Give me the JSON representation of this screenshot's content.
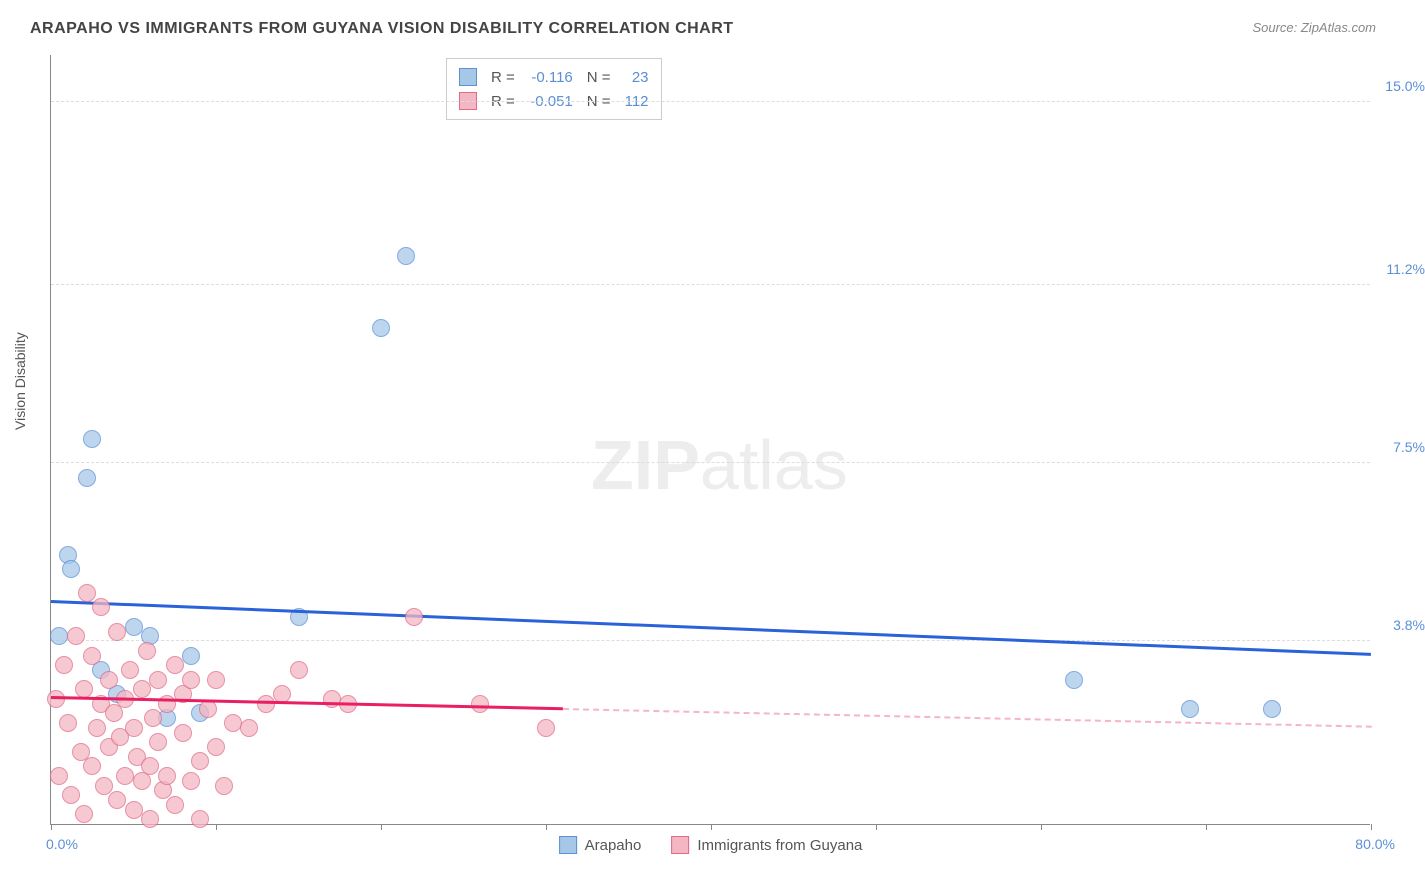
{
  "header": {
    "title": "ARAPAHO VS IMMIGRANTS FROM GUYANA VISION DISABILITY CORRELATION CHART",
    "source": "Source: ZipAtlas.com"
  },
  "chart": {
    "type": "scatter",
    "ylabel": "Vision Disability",
    "xlim": [
      0,
      80
    ],
    "ylim": [
      0,
      16
    ],
    "x_min_label": "0.0%",
    "x_max_label": "80.0%",
    "yticks": [
      {
        "value": 3.8,
        "label": "3.8%"
      },
      {
        "value": 7.5,
        "label": "7.5%"
      },
      {
        "value": 11.2,
        "label": "11.2%"
      },
      {
        "value": 15.0,
        "label": "15.0%"
      }
    ],
    "xticks": [
      0,
      10,
      20,
      30,
      40,
      50,
      60,
      70,
      80
    ],
    "background_color": "#ffffff",
    "grid_color": "#dddddd",
    "axis_color": "#888888",
    "label_color": "#5b8fd6",
    "point_radius": 9,
    "series": [
      {
        "name": "Arapaho",
        "fill_color": "#a7c7e7",
        "stroke_color": "#5b8fd6",
        "trend_color": "#2962d9",
        "R": "-0.116",
        "N": "23",
        "trend": {
          "x1": 0,
          "y1": 4.6,
          "x2": 80,
          "y2": 3.5,
          "solid_to_x": 80
        },
        "points": [
          {
            "x": 0.5,
            "y": 3.9
          },
          {
            "x": 1.0,
            "y": 5.6
          },
          {
            "x": 1.2,
            "y": 5.3
          },
          {
            "x": 2.2,
            "y": 7.2
          },
          {
            "x": 2.5,
            "y": 8.0
          },
          {
            "x": 3.0,
            "y": 3.2
          },
          {
            "x": 4.0,
            "y": 2.7
          },
          {
            "x": 5.0,
            "y": 4.1
          },
          {
            "x": 6.0,
            "y": 3.9
          },
          {
            "x": 7.0,
            "y": 2.2
          },
          {
            "x": 8.5,
            "y": 3.5
          },
          {
            "x": 9.0,
            "y": 2.3
          },
          {
            "x": 15.0,
            "y": 4.3
          },
          {
            "x": 20.0,
            "y": 10.3
          },
          {
            "x": 21.5,
            "y": 11.8
          },
          {
            "x": 62.0,
            "y": 3.0
          },
          {
            "x": 69.0,
            "y": 2.4
          },
          {
            "x": 74.0,
            "y": 2.4
          }
        ]
      },
      {
        "name": "Immigrants from Guyana",
        "fill_color": "#f4b6c2",
        "stroke_color": "#e06b87",
        "trend_color": "#e91e63",
        "R": "-0.051",
        "N": "112",
        "trend": {
          "x1": 0,
          "y1": 2.6,
          "x2": 80,
          "y2": 2.0,
          "solid_to_x": 31
        },
        "points": [
          {
            "x": 0.3,
            "y": 2.6
          },
          {
            "x": 0.5,
            "y": 1.0
          },
          {
            "x": 0.8,
            "y": 3.3
          },
          {
            "x": 1.0,
            "y": 2.1
          },
          {
            "x": 1.2,
            "y": 0.6
          },
          {
            "x": 1.5,
            "y": 3.9
          },
          {
            "x": 1.8,
            "y": 1.5
          },
          {
            "x": 2.0,
            "y": 2.8
          },
          {
            "x": 2.0,
            "y": 0.2
          },
          {
            "x": 2.2,
            "y": 4.8
          },
          {
            "x": 2.5,
            "y": 1.2
          },
          {
            "x": 2.5,
            "y": 3.5
          },
          {
            "x": 2.8,
            "y": 2.0
          },
          {
            "x": 3.0,
            "y": 2.5
          },
          {
            "x": 3.0,
            "y": 4.5
          },
          {
            "x": 3.2,
            "y": 0.8
          },
          {
            "x": 3.5,
            "y": 1.6
          },
          {
            "x": 3.5,
            "y": 3.0
          },
          {
            "x": 3.8,
            "y": 2.3
          },
          {
            "x": 4.0,
            "y": 0.5
          },
          {
            "x": 4.0,
            "y": 4.0
          },
          {
            "x": 4.2,
            "y": 1.8
          },
          {
            "x": 4.5,
            "y": 2.6
          },
          {
            "x": 4.5,
            "y": 1.0
          },
          {
            "x": 4.8,
            "y": 3.2
          },
          {
            "x": 5.0,
            "y": 0.3
          },
          {
            "x": 5.0,
            "y": 2.0
          },
          {
            "x": 5.2,
            "y": 1.4
          },
          {
            "x": 5.5,
            "y": 2.8
          },
          {
            "x": 5.5,
            "y": 0.9
          },
          {
            "x": 5.8,
            "y": 3.6
          },
          {
            "x": 6.0,
            "y": 1.2
          },
          {
            "x": 6.0,
            "y": 0.1
          },
          {
            "x": 6.2,
            "y": 2.2
          },
          {
            "x": 6.5,
            "y": 1.7
          },
          {
            "x": 6.5,
            "y": 3.0
          },
          {
            "x": 6.8,
            "y": 0.7
          },
          {
            "x": 7.0,
            "y": 2.5
          },
          {
            "x": 7.0,
            "y": 1.0
          },
          {
            "x": 7.5,
            "y": 3.3
          },
          {
            "x": 7.5,
            "y": 0.4
          },
          {
            "x": 8.0,
            "y": 1.9
          },
          {
            "x": 8.0,
            "y": 2.7
          },
          {
            "x": 8.5,
            "y": 0.9
          },
          {
            "x": 8.5,
            "y": 3.0
          },
          {
            "x": 9.0,
            "y": 1.3
          },
          {
            "x": 9.0,
            "y": 0.1
          },
          {
            "x": 9.5,
            "y": 2.4
          },
          {
            "x": 10.0,
            "y": 1.6
          },
          {
            "x": 10.0,
            "y": 3.0
          },
          {
            "x": 10.5,
            "y": 0.8
          },
          {
            "x": 11.0,
            "y": 2.1
          },
          {
            "x": 12.0,
            "y": 2.0
          },
          {
            "x": 13.0,
            "y": 2.5
          },
          {
            "x": 14.0,
            "y": 2.7
          },
          {
            "x": 15.0,
            "y": 3.2
          },
          {
            "x": 17.0,
            "y": 2.6
          },
          {
            "x": 18.0,
            "y": 2.5
          },
          {
            "x": 22.0,
            "y": 4.3
          },
          {
            "x": 26.0,
            "y": 2.5
          },
          {
            "x": 30.0,
            "y": 2.0
          }
        ]
      }
    ],
    "bottom_legend": [
      {
        "label": "Arapaho",
        "fill": "#a7c7e7",
        "stroke": "#5b8fd6"
      },
      {
        "label": "Immigrants from Guyana",
        "fill": "#f4b6c2",
        "stroke": "#e06b87"
      }
    ],
    "watermark": {
      "bold": "ZIP",
      "rest": "atlas"
    }
  }
}
